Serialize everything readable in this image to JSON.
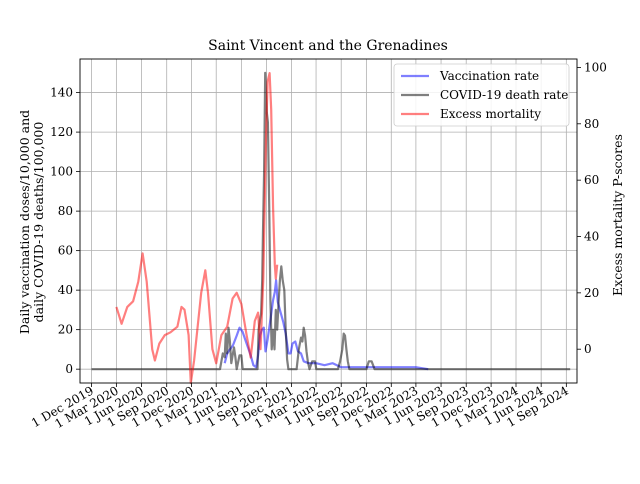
{
  "chart_data": {
    "type": "line",
    "title": "Saint Vincent and the Grenadines",
    "ylabel_left": [
      "Daily vaccination doses/10,000 and",
      "daily COVID-19 deaths/100,000"
    ],
    "ylabel_right": "Excess mortality P-scores",
    "ylim_left": [
      -7,
      157
    ],
    "ylim_right": [
      -12,
      103
    ],
    "xlim": [
      "2019-10-20",
      "2024-10-10"
    ],
    "grid": true,
    "legend_position": "top-right",
    "yticks_left": [
      0,
      20,
      40,
      60,
      80,
      100,
      120,
      140
    ],
    "yticks_right": [
      0,
      20,
      40,
      60,
      80,
      100
    ],
    "xticks": [
      {
        "date": "2019-12-01",
        "label": "1 Dec 2019"
      },
      {
        "date": "2020-03-01",
        "label": "1 Mar 2020"
      },
      {
        "date": "2020-06-01",
        "label": "1 Jun 2020"
      },
      {
        "date": "2020-09-01",
        "label": "1 Sep 2020"
      },
      {
        "date": "2020-12-01",
        "label": "1 Dec 2020"
      },
      {
        "date": "2021-03-01",
        "label": "1 Mar 2021"
      },
      {
        "date": "2021-06-01",
        "label": "1 Jun 2021"
      },
      {
        "date": "2021-09-01",
        "label": "1 Sep 2021"
      },
      {
        "date": "2021-12-01",
        "label": "1 Dec 2021"
      },
      {
        "date": "2022-03-01",
        "label": "1 Mar 2022"
      },
      {
        "date": "2022-06-01",
        "label": "1 Jun 2022"
      },
      {
        "date": "2022-09-01",
        "label": "1 Sep 2022"
      },
      {
        "date": "2022-12-01",
        "label": "1 Dec 2022"
      },
      {
        "date": "2023-03-01",
        "label": "1 Mar 2023"
      },
      {
        "date": "2023-06-01",
        "label": "1 Jun 2023"
      },
      {
        "date": "2023-09-01",
        "label": "1 Sep 2023"
      },
      {
        "date": "2023-12-01",
        "label": "1 Dec 2023"
      },
      {
        "date": "2024-03-01",
        "label": "1 Mar 2024"
      },
      {
        "date": "2024-06-01",
        "label": "1 Jun 2024"
      },
      {
        "date": "2024-09-01",
        "label": "1 Sep 2024"
      }
    ],
    "series": [
      {
        "name": "Vaccination rate",
        "color": "#0000ff",
        "axis": "left",
        "points": [
          [
            "2021-04-01",
            3
          ],
          [
            "2021-04-10",
            8
          ],
          [
            "2021-04-20",
            10
          ],
          [
            "2021-05-01",
            12
          ],
          [
            "2021-05-15",
            17
          ],
          [
            "2021-05-25",
            21
          ],
          [
            "2021-06-05",
            19
          ],
          [
            "2021-06-20",
            13
          ],
          [
            "2021-07-05",
            7
          ],
          [
            "2021-07-15",
            2
          ],
          [
            "2021-07-25",
            1
          ],
          [
            "2021-08-01",
            7
          ],
          [
            "2021-08-08",
            17
          ],
          [
            "2021-08-15",
            20
          ],
          [
            "2021-08-22",
            21
          ],
          [
            "2021-08-28",
            9
          ],
          [
            "2021-09-05",
            15
          ],
          [
            "2021-09-15",
            25
          ],
          [
            "2021-09-25",
            35
          ],
          [
            "2021-10-01",
            39
          ],
          [
            "2021-10-06",
            45
          ],
          [
            "2021-10-12",
            34
          ],
          [
            "2021-10-20",
            30
          ],
          [
            "2021-11-01",
            24
          ],
          [
            "2021-11-10",
            18
          ],
          [
            "2021-11-20",
            8
          ],
          [
            "2021-11-28",
            8
          ],
          [
            "2021-12-05",
            13
          ],
          [
            "2021-12-15",
            14
          ],
          [
            "2021-12-25",
            9
          ],
          [
            "2022-01-05",
            8
          ],
          [
            "2022-01-15",
            4
          ],
          [
            "2022-02-01",
            3
          ],
          [
            "2022-03-01",
            3
          ],
          [
            "2022-04-01",
            2
          ],
          [
            "2022-05-01",
            3
          ],
          [
            "2022-06-01",
            1
          ],
          [
            "2022-07-15",
            1
          ],
          [
            "2022-09-01",
            1
          ],
          [
            "2022-12-01",
            1
          ],
          [
            "2023-03-01",
            1
          ],
          [
            "2023-04-15",
            0
          ]
        ]
      },
      {
        "name": "COVID-19 death rate",
        "color": "#000000",
        "axis": "left",
        "points": [
          [
            "2019-12-01",
            0
          ],
          [
            "2021-03-15",
            0
          ],
          [
            "2021-03-25",
            8
          ],
          [
            "2021-04-01",
            6
          ],
          [
            "2021-04-05",
            18
          ],
          [
            "2021-04-10",
            8
          ],
          [
            "2021-04-15",
            21
          ],
          [
            "2021-04-20",
            14
          ],
          [
            "2021-04-25",
            3
          ],
          [
            "2021-04-30",
            7
          ],
          [
            "2021-05-05",
            11
          ],
          [
            "2021-05-10",
            6
          ],
          [
            "2021-05-15",
            0
          ],
          [
            "2021-05-25",
            7
          ],
          [
            "2021-06-01",
            7
          ],
          [
            "2021-06-06",
            0
          ],
          [
            "2021-07-30",
            0
          ],
          [
            "2021-08-03",
            20
          ],
          [
            "2021-08-08",
            25
          ],
          [
            "2021-08-12",
            28
          ],
          [
            "2021-08-16",
            45
          ],
          [
            "2021-08-19",
            70
          ],
          [
            "2021-08-23",
            100
          ],
          [
            "2021-08-27",
            150
          ],
          [
            "2021-09-02",
            130
          ],
          [
            "2021-09-06",
            125
          ],
          [
            "2021-09-11",
            80
          ],
          [
            "2021-09-15",
            35
          ],
          [
            "2021-09-20",
            10
          ],
          [
            "2021-09-25",
            20
          ],
          [
            "2021-09-30",
            10
          ],
          [
            "2021-10-05",
            30
          ],
          [
            "2021-10-10",
            20
          ],
          [
            "2021-10-15",
            34
          ],
          [
            "2021-10-20",
            45
          ],
          [
            "2021-10-25",
            52
          ],
          [
            "2021-10-30",
            45
          ],
          [
            "2021-11-05",
            40
          ],
          [
            "2021-11-10",
            20
          ],
          [
            "2021-11-15",
            5
          ],
          [
            "2021-11-20",
            0
          ],
          [
            "2021-12-20",
            0
          ],
          [
            "2021-12-28",
            10
          ],
          [
            "2022-01-05",
            16
          ],
          [
            "2022-01-10",
            14
          ],
          [
            "2022-01-15",
            21
          ],
          [
            "2022-01-20",
            17
          ],
          [
            "2022-01-25",
            9
          ],
          [
            "2022-01-30",
            4
          ],
          [
            "2022-02-05",
            0
          ],
          [
            "2022-02-15",
            4
          ],
          [
            "2022-02-25",
            4
          ],
          [
            "2022-03-02",
            0
          ],
          [
            "2022-05-20",
            0
          ],
          [
            "2022-05-28",
            4
          ],
          [
            "2022-06-05",
            10
          ],
          [
            "2022-06-10",
            18
          ],
          [
            "2022-06-15",
            17
          ],
          [
            "2022-06-20",
            10
          ],
          [
            "2022-06-25",
            4
          ],
          [
            "2022-07-01",
            0
          ],
          [
            "2022-09-01",
            0
          ],
          [
            "2022-09-10",
            4
          ],
          [
            "2022-09-20",
            4
          ],
          [
            "2022-10-01",
            0
          ],
          [
            "2023-08-01",
            0
          ],
          [
            "2024-09-15",
            0
          ]
        ]
      },
      {
        "name": "Excess mortality",
        "color": "#ff0000",
        "axis": "right",
        "points": [
          [
            "2020-03-01",
            15
          ],
          [
            "2020-03-20",
            9
          ],
          [
            "2020-04-10",
            15
          ],
          [
            "2020-05-01",
            17
          ],
          [
            "2020-05-20",
            24
          ],
          [
            "2020-06-05",
            34
          ],
          [
            "2020-06-20",
            24
          ],
          [
            "2020-07-10",
            0
          ],
          [
            "2020-07-20",
            -4
          ],
          [
            "2020-08-05",
            2
          ],
          [
            "2020-08-25",
            5
          ],
          [
            "2020-09-15",
            6
          ],
          [
            "2020-10-10",
            8
          ],
          [
            "2020-10-25",
            15
          ],
          [
            "2020-11-05",
            14
          ],
          [
            "2020-11-20",
            5
          ],
          [
            "2020-11-28",
            -12
          ],
          [
            "2020-12-10",
            -4
          ],
          [
            "2021-01-05",
            20
          ],
          [
            "2021-01-20",
            28
          ],
          [
            "2021-01-30",
            20
          ],
          [
            "2021-02-15",
            0
          ],
          [
            "2021-03-01",
            -5
          ],
          [
            "2021-03-20",
            5
          ],
          [
            "2021-04-10",
            8
          ],
          [
            "2021-04-30",
            18
          ],
          [
            "2021-05-15",
            20
          ],
          [
            "2021-06-01",
            16
          ],
          [
            "2021-06-20",
            5
          ],
          [
            "2021-07-05",
            -3
          ],
          [
            "2021-07-20",
            10
          ],
          [
            "2021-08-01",
            13
          ],
          [
            "2021-08-10",
            0
          ],
          [
            "2021-08-20",
            25
          ],
          [
            "2021-08-30",
            75
          ],
          [
            "2021-09-05",
            95
          ],
          [
            "2021-09-12",
            98
          ],
          [
            "2021-09-18",
            85
          ],
          [
            "2021-09-25",
            50
          ],
          [
            "2021-10-01",
            30
          ],
          [
            "2021-10-05",
            25
          ],
          [
            "2021-10-10",
            30
          ]
        ]
      }
    ]
  }
}
